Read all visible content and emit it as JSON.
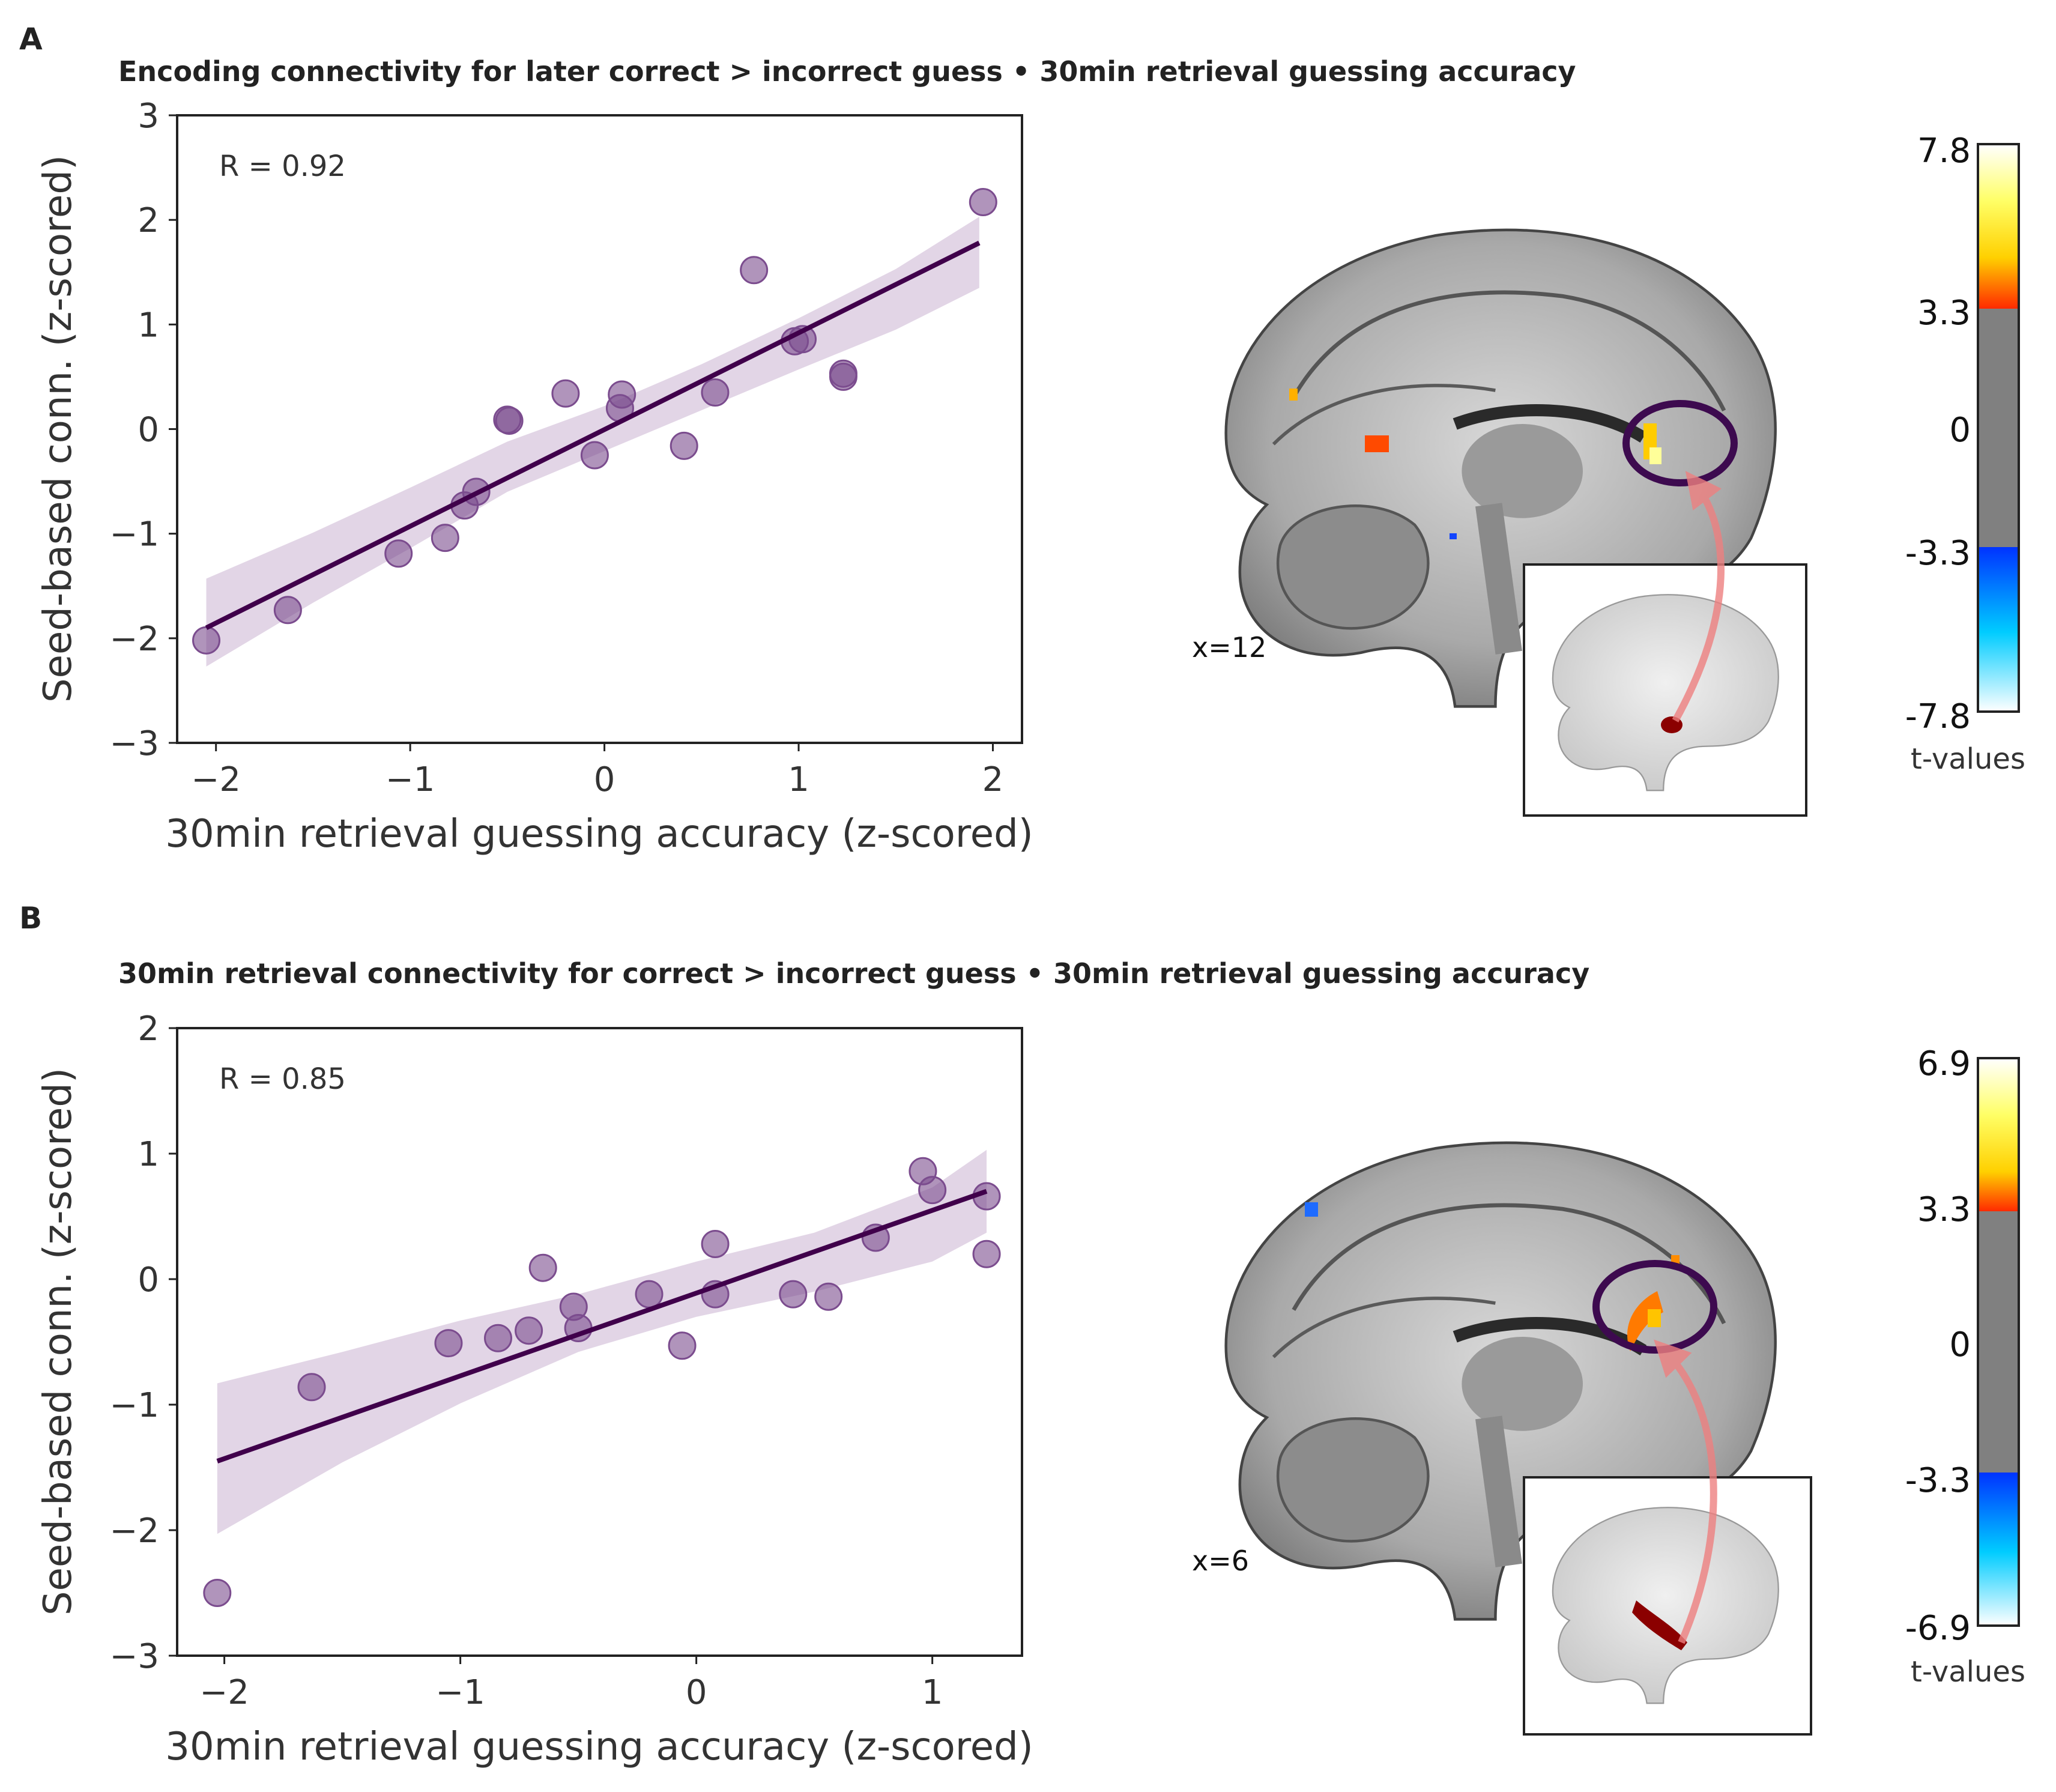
{
  "panels": [
    {
      "letter": "A",
      "title": "Encoding connectivity for later correct > incorrect guess • 30min retrieval guessing accuracy",
      "slice_label": "x=12",
      "colorbar": {
        "ticks": [
          "7.8",
          "3.3",
          "0",
          "-3.3",
          "-7.8"
        ],
        "label": "t-values",
        "max": 7.8,
        "threshold": 3.3
      }
    },
    {
      "letter": "B",
      "title": "30min retrieval connectivity for correct > incorrect guess • 30min retrieval guessing accuracy",
      "slice_label": "x=6",
      "colorbar": {
        "ticks": [
          "6.9",
          "3.3",
          "0",
          "-3.3",
          "-6.9"
        ],
        "label": "t-values",
        "max": 6.9,
        "threshold": 3.3
      }
    }
  ],
  "chart_data": [
    {
      "type": "scatter",
      "title": "Encoding connectivity for later correct > incorrect guess • 30min retrieval guessing accuracy",
      "xlabel": "30min retrieval guessing accuracy (z-scored)",
      "ylabel": "Seed-based conn. (z-scored)",
      "annotation": "R = 0.92",
      "xlim": [
        -2.2,
        2.15
      ],
      "ylim": [
        -3,
        3
      ],
      "xticks": [
        -2,
        -1,
        0,
        1,
        2
      ],
      "xtick_labels": [
        "−2",
        "−1",
        "0",
        "1",
        "2"
      ],
      "yticks": [
        -3,
        -2,
        -1,
        0,
        1,
        2,
        3
      ],
      "ytick_labels": [
        "−3",
        "−2",
        "−1",
        "0",
        "1",
        "2",
        "3"
      ],
      "points": [
        {
          "x": -2.05,
          "y": -2.02
        },
        {
          "x": -1.63,
          "y": -1.73
        },
        {
          "x": -1.06,
          "y": -1.19
        },
        {
          "x": -0.82,
          "y": -1.04
        },
        {
          "x": -0.72,
          "y": -0.73
        },
        {
          "x": -0.66,
          "y": -0.6
        },
        {
          "x": -0.5,
          "y": 0.09
        },
        {
          "x": -0.49,
          "y": 0.08
        },
        {
          "x": -0.2,
          "y": 0.34
        },
        {
          "x": -0.05,
          "y": -0.25
        },
        {
          "x": 0.08,
          "y": 0.2
        },
        {
          "x": 0.09,
          "y": 0.33
        },
        {
          "x": 0.41,
          "y": -0.16
        },
        {
          "x": 0.57,
          "y": 0.35
        },
        {
          "x": 0.77,
          "y": 1.52
        },
        {
          "x": 0.98,
          "y": 0.84
        },
        {
          "x": 1.02,
          "y": 0.86
        },
        {
          "x": 1.23,
          "y": 0.53
        },
        {
          "x": 1.23,
          "y": 0.5
        },
        {
          "x": 1.95,
          "y": 2.17
        }
      ],
      "fit": {
        "x": [
          -2.05,
          1.93
        ],
        "y": [
          -1.9,
          1.78
        ]
      },
      "ci": {
        "x": [
          -2.05,
          -1.5,
          -1.0,
          -0.5,
          0.0,
          0.5,
          1.0,
          1.5,
          1.93
        ],
        "upper": [
          -1.43,
          -0.99,
          -0.56,
          -0.12,
          0.22,
          0.62,
          1.06,
          1.53,
          2.03
        ],
        "lower": [
          -2.27,
          -1.66,
          -1.14,
          -0.6,
          -0.21,
          0.18,
          0.57,
          0.95,
          1.35
        ]
      },
      "marker_color": "#7b4c8e",
      "line_color": "#40004b",
      "ci_color": "#d8c7dd"
    },
    {
      "type": "scatter",
      "title": "30min retrieval connectivity for correct > incorrect guess • 30min retrieval guessing accuracy",
      "xlabel": "30min retrieval guessing accuracy (z-scored)",
      "ylabel": "Seed-based conn. (z-scored)",
      "annotation": "R = 0.85",
      "xlim": [
        -2.2,
        1.38
      ],
      "ylim": [
        -3,
        2
      ],
      "xticks": [
        -2,
        -1,
        0,
        1
      ],
      "xtick_labels": [
        "−2",
        "−1",
        "0",
        "1"
      ],
      "yticks": [
        -3,
        -2,
        -1,
        0,
        1,
        2
      ],
      "ytick_labels": [
        "−3",
        "−2",
        "−1",
        "0",
        "1",
        "2"
      ],
      "points": [
        {
          "x": -2.03,
          "y": -2.5
        },
        {
          "x": -1.63,
          "y": -0.86
        },
        {
          "x": -1.05,
          "y": -0.51
        },
        {
          "x": -0.84,
          "y": -0.47
        },
        {
          "x": -0.71,
          "y": -0.41
        },
        {
          "x": -0.65,
          "y": 0.09
        },
        {
          "x": -0.52,
          "y": -0.22
        },
        {
          "x": -0.5,
          "y": -0.39
        },
        {
          "x": -0.2,
          "y": -0.12
        },
        {
          "x": -0.06,
          "y": -0.53
        },
        {
          "x": 0.08,
          "y": -0.12
        },
        {
          "x": 0.08,
          "y": 0.28
        },
        {
          "x": 0.41,
          "y": -0.12
        },
        {
          "x": 0.56,
          "y": -0.14
        },
        {
          "x": 0.76,
          "y": 0.33
        },
        {
          "x": 0.96,
          "y": 0.86
        },
        {
          "x": 1.0,
          "y": 0.71
        },
        {
          "x": 1.23,
          "y": 0.66
        },
        {
          "x": 1.23,
          "y": 0.2
        }
      ],
      "fit": {
        "x": [
          -2.03,
          1.23
        ],
        "y": [
          -1.45,
          0.7
        ]
      },
      "ci": {
        "x": [
          -2.03,
          -1.5,
          -1.0,
          -0.5,
          0.0,
          0.5,
          1.0,
          1.23
        ],
        "upper": [
          -0.83,
          -0.58,
          -0.33,
          -0.12,
          0.14,
          0.37,
          0.73,
          1.03
        ],
        "lower": [
          -2.03,
          -1.46,
          -0.99,
          -0.58,
          -0.3,
          -0.1,
          0.14,
          0.37
        ]
      },
      "marker_color": "#7b4c8e",
      "line_color": "#40004b",
      "ci_color": "#d8c7dd"
    }
  ]
}
